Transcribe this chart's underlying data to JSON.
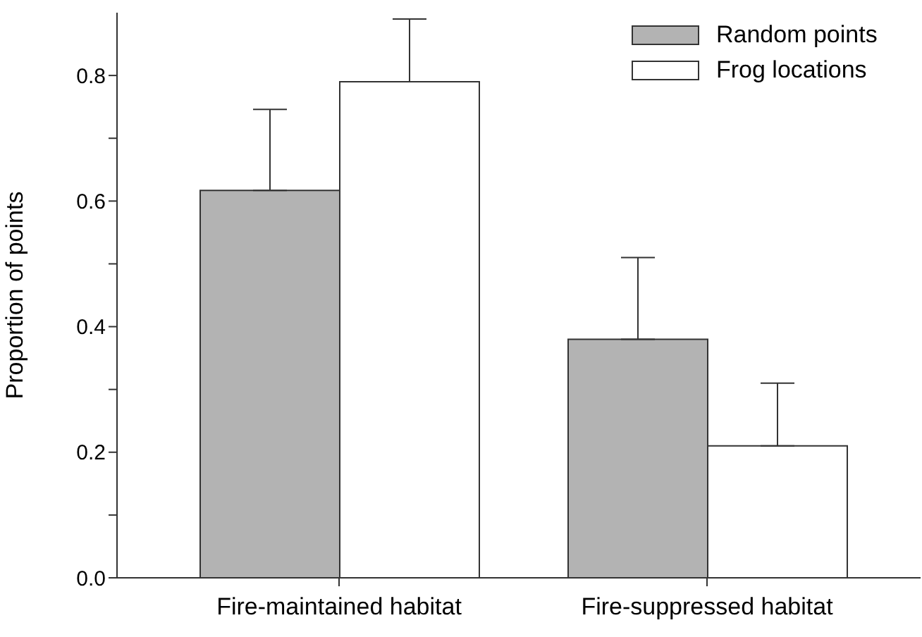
{
  "chart_data": {
    "type": "bar",
    "ylabel": "Proportion of points",
    "categories": [
      "Fire-maintained habitat",
      "Fire-suppressed habitat"
    ],
    "series": [
      {
        "name": "Random points",
        "color": "#b3b3b3",
        "values": [
          0.617,
          0.38
        ],
        "errors": [
          [
            0.617,
            0.746
          ],
          [
            0.38,
            0.51
          ]
        ]
      },
      {
        "name": "Frog locations",
        "color": "#ffffff",
        "values": [
          0.79,
          0.21
        ],
        "errors": [
          [
            0.79,
            0.89
          ],
          [
            0.21,
            0.31
          ]
        ]
      }
    ],
    "ylim": [
      0,
      0.9
    ],
    "yticks": [
      {
        "value": 0,
        "label": "0.0"
      },
      {
        "value": 0.1,
        "label": null
      },
      0.2,
      {
        "value": 0.3,
        "label": null
      },
      0.4,
      {
        "value": 0.5,
        "label": null
      },
      0.6,
      {
        "value": 0.7,
        "label": null
      },
      0.8
    ],
    "legend": "top right"
  }
}
